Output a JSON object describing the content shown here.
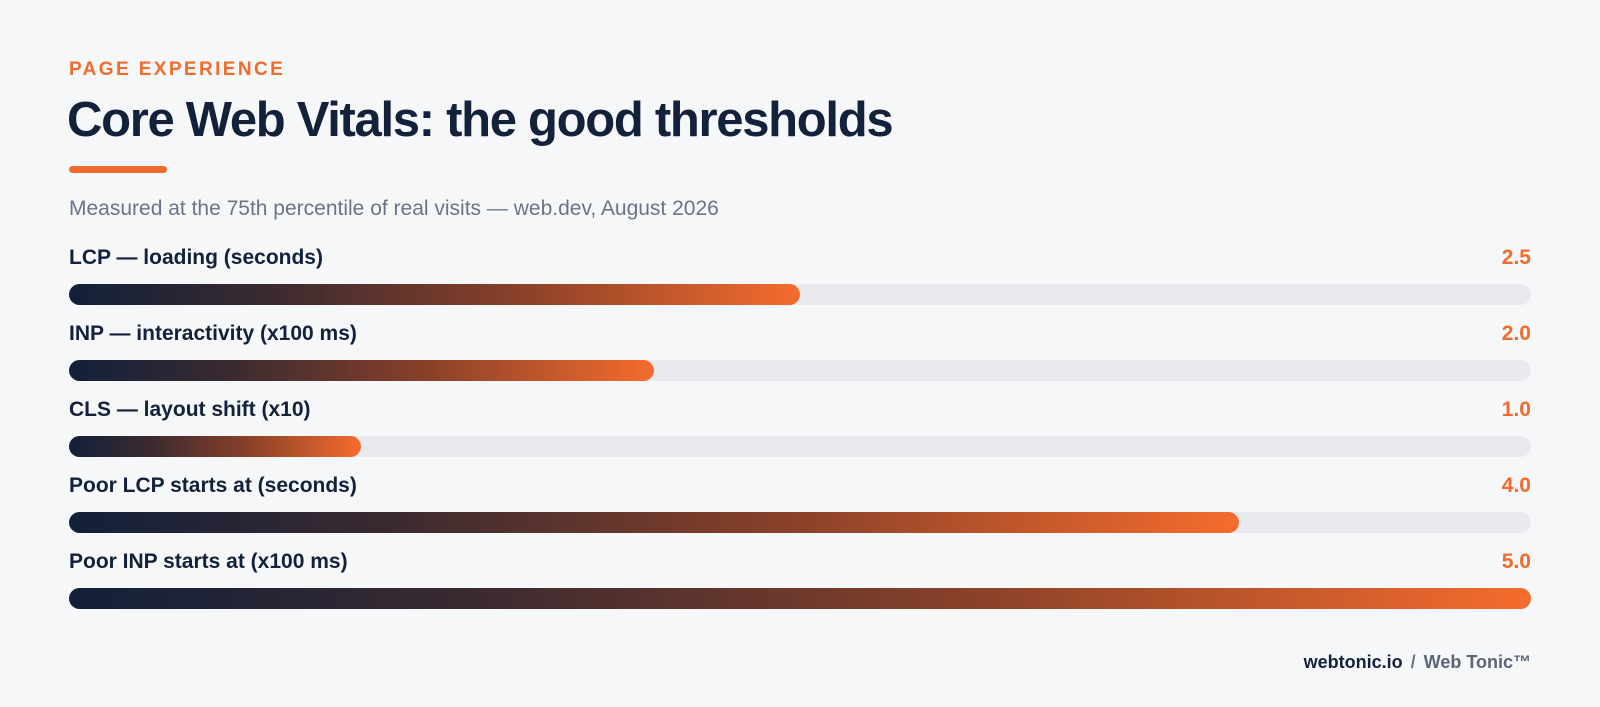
{
  "header": {
    "eyebrow": "PAGE EXPERIENCE",
    "title": "Core Web Vitals: the good thresholds",
    "subtitle": "Measured at the 75th percentile of real visits — web.dev, August 2026"
  },
  "colors": {
    "accent": "#f26b2d",
    "navy": "#13213b",
    "track": "#e8eaee",
    "background": "#f6f7f9"
  },
  "chart_data": {
    "type": "bar",
    "orientation": "horizontal",
    "title": "Core Web Vitals: the good thresholds",
    "subtitle": "Measured at the 75th percentile of real visits — web.dev, August 2026",
    "categories": [
      "LCP — loading (seconds)",
      "INP — interactivity (x100 ms)",
      "CLS — layout shift (x10)",
      "Poor LCP starts at (seconds)",
      "Poor INP starts at (x100 ms)"
    ],
    "values": [
      2.5,
      2.0,
      1.0,
      4.0,
      5.0
    ],
    "value_labels": [
      "2.5",
      "2.0",
      "1.0",
      "4.0",
      "5.0"
    ],
    "xlim": [
      0,
      5.0
    ],
    "grid": false,
    "legend": "none"
  },
  "footer": {
    "domain": "webtonic.io",
    "separator": "/",
    "brand": "Web Tonic™"
  }
}
